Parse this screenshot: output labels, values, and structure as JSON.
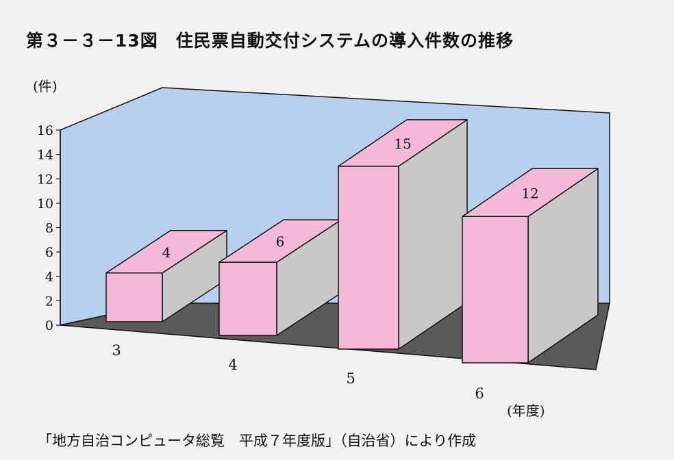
{
  "title": "第３－３－13図　住民票自動交付システムの導入件数の推移",
  "source": "「地方自治コンピュータ総覧　平成７年度版」（自治省）により作成",
  "colors": {
    "back_wall": "#b8d0ee",
    "floor": "#5a5a5a",
    "bar_front": "#f4b8d8",
    "bar_top": "#f4b8d8",
    "bar_side": "#c8c8c8"
  },
  "chart_data": {
    "type": "bar",
    "title": "第３－３－13図　住民票自動交付システムの導入件数の推移",
    "ylabel": "(件)",
    "xlabel": "(年度)",
    "ylim": [
      0,
      16
    ],
    "yticks": [
      "0",
      "2",
      "4",
      "6",
      "8",
      "10",
      "12",
      "14",
      "16"
    ],
    "categories": [
      "3",
      "4",
      "5",
      "6"
    ],
    "values": [
      4,
      6,
      15,
      12
    ],
    "data_labels": [
      "4",
      "6",
      "15",
      "12"
    ],
    "style": "3d"
  }
}
